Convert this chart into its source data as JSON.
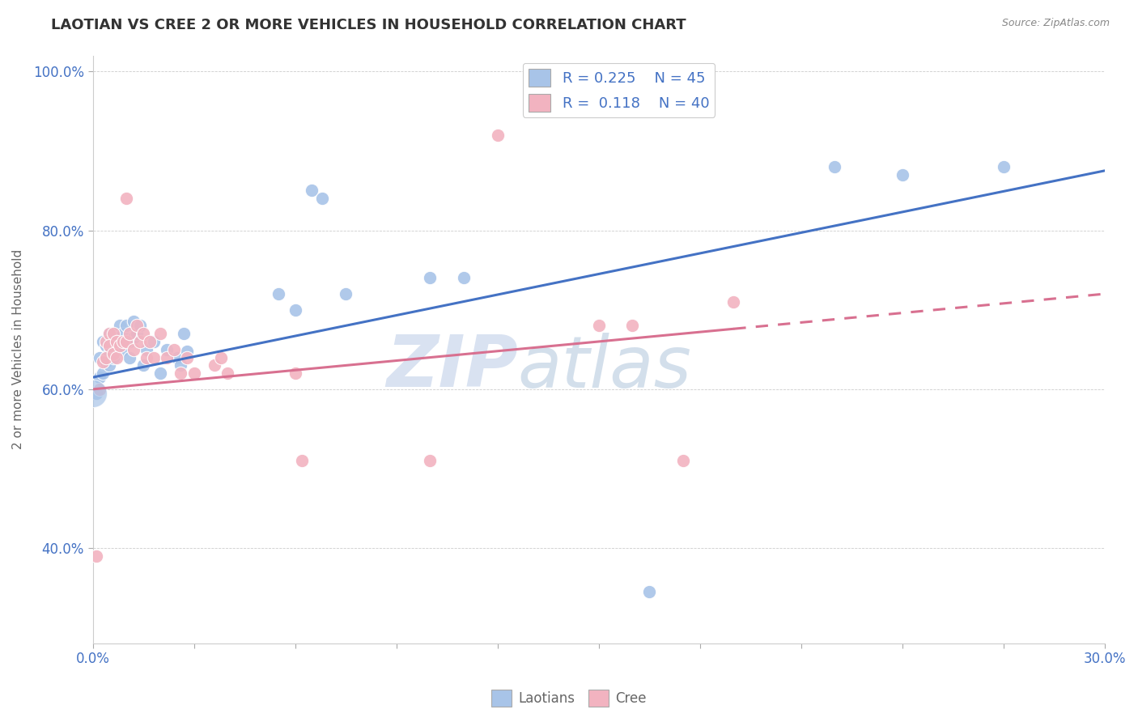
{
  "title": "LAOTIAN VS CREE 2 OR MORE VEHICLES IN HOUSEHOLD CORRELATION CHART",
  "source": "Source: ZipAtlas.com",
  "ylabel": "2 or more Vehicles in Household",
  "legend_label1": "Laotians",
  "legend_label2": "Cree",
  "R1": 0.225,
  "N1": 45,
  "R2": 0.118,
  "N2": 40,
  "xlim": [
    0.0,
    0.3
  ],
  "ylim": [
    0.28,
    1.02
  ],
  "xticks": [
    0.0,
    0.03,
    0.06,
    0.09,
    0.12,
    0.15,
    0.18,
    0.21,
    0.24,
    0.27,
    0.3
  ],
  "ytick_labels": [
    "40.0%",
    "60.0%",
    "80.0%",
    "100.0%"
  ],
  "yticks": [
    0.4,
    0.6,
    0.8,
    1.0
  ],
  "color_blue": "#a8c4e8",
  "color_pink": "#f2b3c0",
  "line_color_blue": "#4472c4",
  "line_color_pink": "#d87090",
  "watermark_zip": "ZIP",
  "watermark_atlas": "atlas",
  "scatter_blue": [
    [
      0.001,
      0.595
    ],
    [
      0.002,
      0.615
    ],
    [
      0.002,
      0.64
    ],
    [
      0.003,
      0.66
    ],
    [
      0.003,
      0.62
    ],
    [
      0.004,
      0.635
    ],
    [
      0.004,
      0.655
    ],
    [
      0.005,
      0.67
    ],
    [
      0.005,
      0.645
    ],
    [
      0.005,
      0.63
    ],
    [
      0.006,
      0.66
    ],
    [
      0.006,
      0.64
    ],
    [
      0.007,
      0.665
    ],
    [
      0.007,
      0.65
    ],
    [
      0.008,
      0.68
    ],
    [
      0.008,
      0.66
    ],
    [
      0.009,
      0.67
    ],
    [
      0.009,
      0.65
    ],
    [
      0.01,
      0.68
    ],
    [
      0.011,
      0.64
    ],
    [
      0.011,
      0.66
    ],
    [
      0.012,
      0.665
    ],
    [
      0.012,
      0.685
    ],
    [
      0.013,
      0.67
    ],
    [
      0.014,
      0.68
    ],
    [
      0.015,
      0.63
    ],
    [
      0.016,
      0.65
    ],
    [
      0.018,
      0.66
    ],
    [
      0.02,
      0.62
    ],
    [
      0.022,
      0.65
    ],
    [
      0.025,
      0.64
    ],
    [
      0.026,
      0.63
    ],
    [
      0.027,
      0.67
    ],
    [
      0.028,
      0.648
    ],
    [
      0.055,
      0.72
    ],
    [
      0.06,
      0.7
    ],
    [
      0.065,
      0.85
    ],
    [
      0.068,
      0.84
    ],
    [
      0.075,
      0.72
    ],
    [
      0.1,
      0.74
    ],
    [
      0.11,
      0.74
    ],
    [
      0.165,
      0.345
    ],
    [
      0.22,
      0.88
    ],
    [
      0.24,
      0.87
    ],
    [
      0.27,
      0.88
    ]
  ],
  "scatter_pink": [
    [
      0.001,
      0.39
    ],
    [
      0.002,
      0.6
    ],
    [
      0.003,
      0.635
    ],
    [
      0.004,
      0.66
    ],
    [
      0.004,
      0.64
    ],
    [
      0.005,
      0.67
    ],
    [
      0.005,
      0.655
    ],
    [
      0.006,
      0.67
    ],
    [
      0.006,
      0.645
    ],
    [
      0.007,
      0.66
    ],
    [
      0.007,
      0.64
    ],
    [
      0.008,
      0.655
    ],
    [
      0.009,
      0.66
    ],
    [
      0.01,
      0.84
    ],
    [
      0.01,
      0.66
    ],
    [
      0.011,
      0.67
    ],
    [
      0.012,
      0.65
    ],
    [
      0.013,
      0.68
    ],
    [
      0.014,
      0.66
    ],
    [
      0.015,
      0.67
    ],
    [
      0.016,
      0.64
    ],
    [
      0.017,
      0.66
    ],
    [
      0.018,
      0.64
    ],
    [
      0.02,
      0.67
    ],
    [
      0.022,
      0.64
    ],
    [
      0.024,
      0.65
    ],
    [
      0.026,
      0.62
    ],
    [
      0.028,
      0.64
    ],
    [
      0.03,
      0.62
    ],
    [
      0.036,
      0.63
    ],
    [
      0.038,
      0.64
    ],
    [
      0.04,
      0.62
    ],
    [
      0.06,
      0.62
    ],
    [
      0.062,
      0.51
    ],
    [
      0.1,
      0.51
    ],
    [
      0.12,
      0.92
    ],
    [
      0.15,
      0.68
    ],
    [
      0.16,
      0.68
    ],
    [
      0.175,
      0.51
    ],
    [
      0.19,
      0.71
    ]
  ],
  "line_blue_y0": 0.615,
  "line_blue_y1": 0.875,
  "line_pink_y0": 0.6,
  "line_pink_y1": 0.72,
  "line_pink_solid_end": 0.19
}
